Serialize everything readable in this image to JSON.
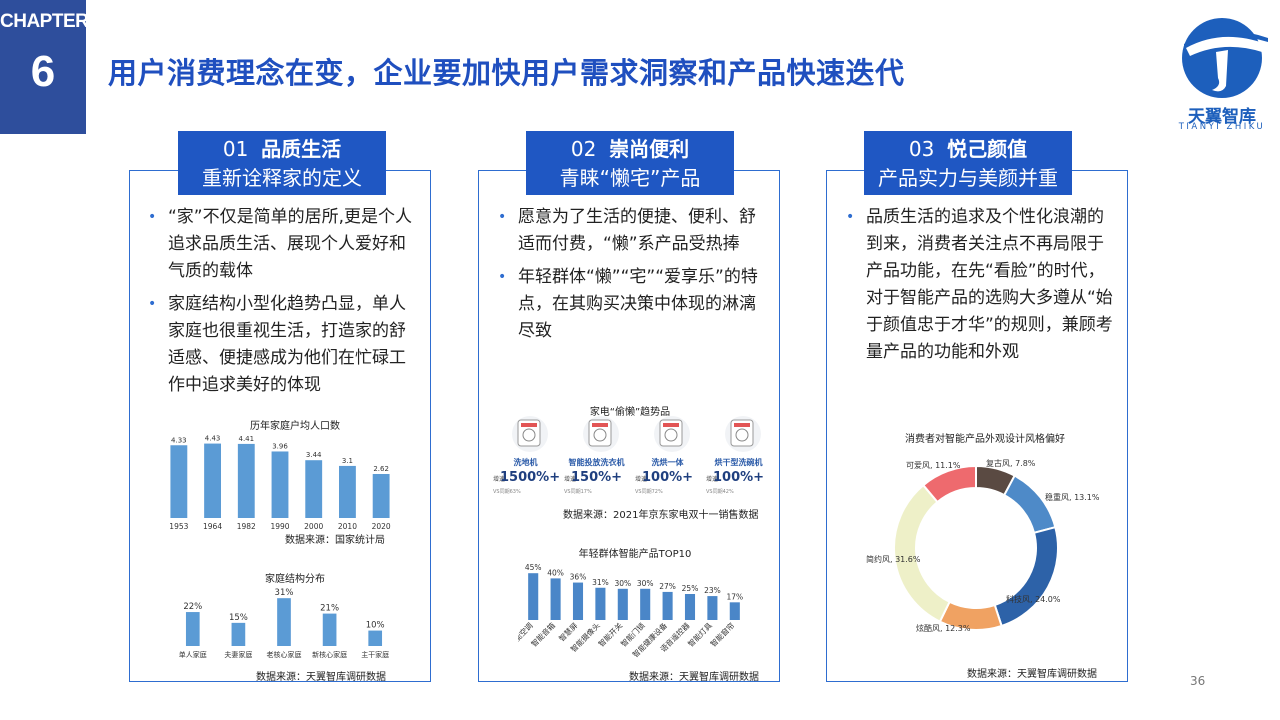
{
  "chapter": {
    "label": "CHAPTER",
    "number": "6"
  },
  "title": "用户消费理念在变，企业要加快用户需求洞察和产品快速迭代",
  "logo": {
    "brand": "天翼智库",
    "sub": "TIANYI ZHIKU"
  },
  "panels": [
    {
      "num": "01",
      "name": "品质生活",
      "subtitle": "重新诠释家的定义",
      "bullets": [
        "“家”不仅是简单的居所,更是个人追求品质生活、展现个人爱好和气质的载体",
        "家庭结构小型化趋势凸显，单人家庭也很重视生活，打造家的舒适感、便捷感成为他们在忙碌工作中追求美好的体现"
      ]
    },
    {
      "num": "02",
      "name": "崇尚便利",
      "subtitle": "青睐“懒宅”产品",
      "bullets": [
        "愿意为了生活的便捷、便利、舒适而付费，“懒”系产品受热捧",
        "年轻群体“懒”“宅”“爱享乐”的特点，在其购买决策中体现的淋漓尽致"
      ]
    },
    {
      "num": "03",
      "name": "悦己颜值",
      "subtitle": "产品实力与美颜并重",
      "bullets": [
        "品质生活的追求及个性化浪潮的到来，消费者关注点不再局限于产品功能，在先“看脸”的时代，对于智能产品的选购大多遵从“始于颜值忠于才华”的规则，兼顾考量产品的功能和外观"
      ]
    }
  ],
  "chart_data": [
    {
      "type": "bar",
      "title": "历年家庭户均人口数",
      "categories": [
        "1953",
        "1964",
        "1982",
        "1990",
        "2000",
        "2010",
        "2020"
      ],
      "values": [
        4.33,
        4.43,
        4.41,
        3.96,
        3.44,
        3.1,
        2.62
      ],
      "labels": [
        "4.33",
        "4.43",
        "4.41",
        "3.96",
        "3.44",
        "3.1",
        "2.62"
      ],
      "ylim": [
        0,
        5
      ],
      "source": "数据来源：国家统计局",
      "color": "#5b9bd5"
    },
    {
      "type": "bar",
      "title": "家庭结构分布",
      "categories": [
        "单人家庭",
        "夫妻家庭",
        "老核心家庭",
        "新核心家庭",
        "主干家庭"
      ],
      "values": [
        22,
        15,
        31,
        21,
        10
      ],
      "labels": [
        "22%",
        "15%",
        "31%",
        "21%",
        "10%"
      ],
      "ylim": [
        0,
        35
      ],
      "source": "数据来源：天翼智库调研数据",
      "color": "#5b9bd5"
    },
    {
      "type": "table",
      "title": "家电“偷懒”趋势品",
      "items": [
        {
          "name": "洗地机",
          "growth": "1500%+",
          "cap": "增速",
          "note": "VS同期63%"
        },
        {
          "name": "智能投放洗衣机",
          "growth": "150%+",
          "cap": "增速",
          "note": "VS同期17%"
        },
        {
          "name": "洗烘一体",
          "growth": "100%+",
          "cap": "增速",
          "note": "VS同期72%"
        },
        {
          "name": "烘干型洗碗机",
          "growth": "100%+",
          "cap": "增速",
          "note": "VS同期42%"
        }
      ],
      "source": "数据来源：2021年京东家电双十一销售数据"
    },
    {
      "type": "bar",
      "title": "年轻群体智能产品TOP10",
      "categories": [
        "智能空调",
        "智能音箱",
        "智慧屏",
        "智能摄像头",
        "智能开关",
        "智能门锁",
        "智能健康设备",
        "语音遥控器",
        "智能灯具",
        "智能窗帘"
      ],
      "values": [
        45,
        40,
        36,
        31,
        30,
        30,
        27,
        25,
        23,
        17
      ],
      "labels": [
        "45%",
        "40%",
        "36%",
        "31%",
        "30%",
        "30%",
        "27%",
        "25%",
        "23%",
        "17%"
      ],
      "ylim": [
        0,
        50
      ],
      "source": "数据来源：天翼智库调研数据",
      "color": "#4a86c8"
    },
    {
      "type": "pie",
      "title": "消费者对智能产品外观设计风格偏好",
      "slices": [
        {
          "label": "复古风, 7.8%",
          "value": 7.8,
          "color": "#5a4a42"
        },
        {
          "label": "稳重风, 13.1%",
          "value": 13.1,
          "color": "#4e8ac8"
        },
        {
          "label": "科技风, 24.0%",
          "value": 24.0,
          "color": "#2d62a8"
        },
        {
          "label": "炫酷风, 12.3%",
          "value": 12.3,
          "color": "#f0a262"
        },
        {
          "label": "简约风, 31.6%",
          "value": 31.6,
          "color": "#eef0c8"
        },
        {
          "label": "可爱风, 11.1%",
          "value": 11.1,
          "color": "#ee6a6e"
        }
      ],
      "source": "数据来源：天翼智库调研数据"
    }
  ],
  "page_number": "36"
}
